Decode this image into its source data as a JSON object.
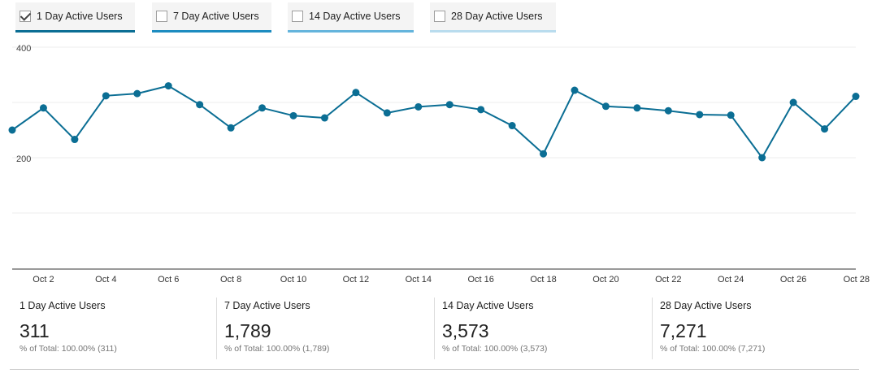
{
  "tabs": [
    {
      "label": "1 Day Active Users",
      "checked": true,
      "underline": "#0b6e94"
    },
    {
      "label": "7 Day Active Users",
      "checked": false,
      "underline": "#1d8cc0"
    },
    {
      "label": "14 Day Active Users",
      "checked": false,
      "underline": "#64b4dc"
    },
    {
      "label": "28 Day Active Users",
      "checked": false,
      "underline": "#b9dcee"
    }
  ],
  "chart_data": {
    "type": "line",
    "x": [
      "Oct 1",
      "Oct 2",
      "Oct 3",
      "Oct 4",
      "Oct 5",
      "Oct 6",
      "Oct 7",
      "Oct 8",
      "Oct 9",
      "Oct 10",
      "Oct 11",
      "Oct 12",
      "Oct 13",
      "Oct 14",
      "Oct 15",
      "Oct 16",
      "Oct 17",
      "Oct 18",
      "Oct 19",
      "Oct 20",
      "Oct 21",
      "Oct 22",
      "Oct 23",
      "Oct 24",
      "Oct 25",
      "Oct 26",
      "Oct 27",
      "Oct 28"
    ],
    "x_tick_labels": [
      "Oct 2",
      "Oct 4",
      "Oct 6",
      "Oct 8",
      "Oct 10",
      "Oct 12",
      "Oct 14",
      "Oct 16",
      "Oct 18",
      "Oct 20",
      "Oct 22",
      "Oct 24",
      "Oct 26",
      "Oct 28"
    ],
    "series": [
      {
        "values": [
          250,
          290,
          233,
          312,
          316,
          330,
          296,
          254,
          290,
          276,
          272,
          318,
          281,
          292,
          296,
          287,
          258,
          207,
          322,
          293,
          290,
          285,
          278,
          277,
          200,
          300,
          252,
          311
        ],
        "color": "#0b6e94"
      }
    ],
    "y_ticks": [
      200,
      400
    ],
    "ylim": [
      0,
      400
    ],
    "grid": true,
    "title": "",
    "xlabel": "",
    "ylabel": ""
  },
  "scorecards": [
    {
      "title": "1 Day Active Users",
      "value": "311",
      "sub": "% of Total: 100.00% (311)"
    },
    {
      "title": "7 Day Active Users",
      "value": "1,789",
      "sub": "% of Total: 100.00% (1,789)"
    },
    {
      "title": "14 Day Active Users",
      "value": "3,573",
      "sub": "% of Total: 100.00% (3,573)"
    },
    {
      "title": "28 Day Active Users",
      "value": "7,271",
      "sub": "% of Total: 100.00% (7,271)"
    }
  ]
}
